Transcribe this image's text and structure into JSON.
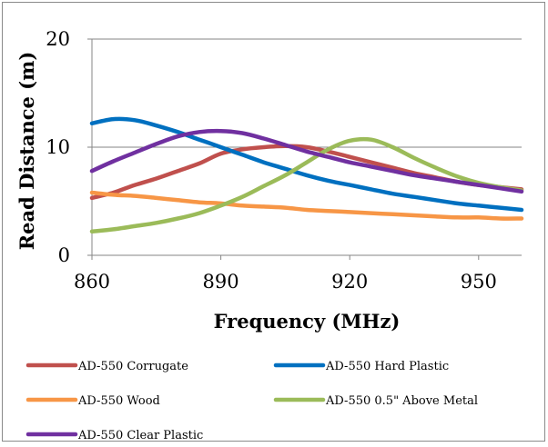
{
  "chart_data": {
    "type": "line",
    "title": "",
    "xlabel": "Frequency (MHz)",
    "ylabel": "Read Distance (m)",
    "xlim": [
      860,
      960
    ],
    "ylim": [
      0,
      20
    ],
    "x_ticks": [
      "860",
      "890",
      "920",
      "950"
    ],
    "y_ticks": [
      "0",
      "10",
      "20"
    ],
    "grid": "horizontal",
    "legend_position": "bottom",
    "series": [
      {
        "name": "AD-550 Corrugate",
        "color": "#C0504D",
        "x": [
          860,
          865,
          870,
          875,
          880,
          885,
          890,
          895,
          900,
          905,
          910,
          915,
          920,
          925,
          930,
          935,
          940,
          945,
          950,
          955,
          960
        ],
        "y": [
          5.3,
          5.8,
          6.5,
          7.1,
          7.8,
          8.5,
          9.4,
          9.8,
          10.0,
          10.1,
          10.0,
          9.6,
          9.1,
          8.6,
          8.1,
          7.6,
          7.2,
          6.8,
          6.5,
          6.3,
          6.1
        ]
      },
      {
        "name": "AD-550 Hard Plastic",
        "color": "#0070C0",
        "x": [
          860,
          865,
          870,
          875,
          880,
          885,
          890,
          895,
          900,
          905,
          910,
          915,
          920,
          925,
          930,
          935,
          940,
          945,
          950,
          955,
          960
        ],
        "y": [
          12.2,
          12.6,
          12.5,
          12.0,
          11.4,
          10.7,
          10.0,
          9.3,
          8.6,
          8.0,
          7.4,
          6.9,
          6.5,
          6.1,
          5.7,
          5.4,
          5.1,
          4.8,
          4.6,
          4.4,
          4.2
        ]
      },
      {
        "name": "AD-550 Wood",
        "color": "#F79646",
        "x": [
          860,
          865,
          870,
          875,
          880,
          885,
          890,
          895,
          900,
          905,
          910,
          915,
          920,
          925,
          930,
          935,
          940,
          945,
          950,
          955,
          960
        ],
        "y": [
          5.8,
          5.6,
          5.5,
          5.3,
          5.1,
          4.9,
          4.8,
          4.6,
          4.5,
          4.4,
          4.2,
          4.1,
          4.0,
          3.9,
          3.8,
          3.7,
          3.6,
          3.5,
          3.5,
          3.4,
          3.4
        ]
      },
      {
        "name": "AD-550 0.5\" Above Metal",
        "color": "#9BBB59",
        "x": [
          860,
          865,
          870,
          875,
          880,
          885,
          890,
          895,
          900,
          905,
          910,
          915,
          920,
          925,
          930,
          935,
          940,
          945,
          950,
          955,
          960
        ],
        "y": [
          2.2,
          2.4,
          2.7,
          3.0,
          3.4,
          3.9,
          4.6,
          5.4,
          6.4,
          7.4,
          8.6,
          9.8,
          10.6,
          10.7,
          10.0,
          9.0,
          8.1,
          7.3,
          6.7,
          6.3,
          6.0
        ]
      },
      {
        "name": "AD-550 Clear Plastic",
        "color": "#7030A0",
        "x": [
          860,
          865,
          870,
          875,
          880,
          885,
          890,
          895,
          900,
          905,
          910,
          915,
          920,
          925,
          930,
          935,
          940,
          945,
          950,
          955,
          960
        ],
        "y": [
          7.8,
          8.7,
          9.5,
          10.3,
          11.0,
          11.4,
          11.5,
          11.3,
          10.8,
          10.2,
          9.6,
          9.1,
          8.6,
          8.2,
          7.8,
          7.4,
          7.1,
          6.8,
          6.5,
          6.2,
          5.9
        ]
      }
    ]
  }
}
